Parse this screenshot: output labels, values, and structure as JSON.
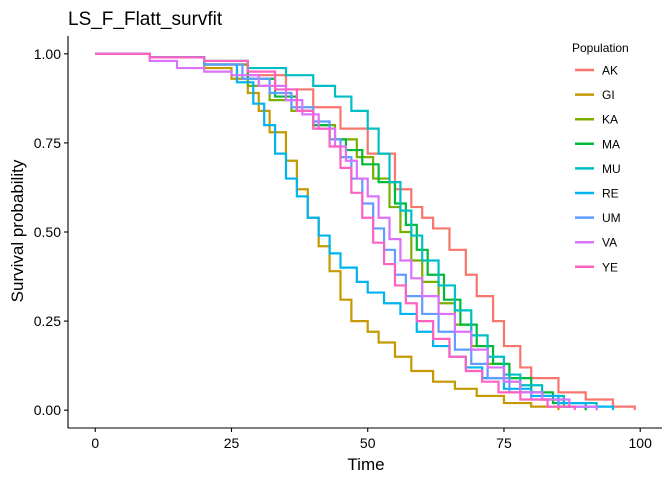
{
  "chart_data": {
    "type": "line",
    "title": "LS_F_Flatt_survfit",
    "xlabel": "Time",
    "ylabel": "Survival probability",
    "xlim": [
      0,
      100
    ],
    "ylim": [
      0,
      1
    ],
    "x_ticks": [
      "0",
      "25",
      "50",
      "75",
      "100"
    ],
    "y_ticks": [
      "0.00",
      "0.25",
      "0.50",
      "0.75",
      "1.00"
    ],
    "grid": false,
    "legend_title": "Population",
    "legend_position": "top-right",
    "step": true,
    "series": [
      {
        "name": "AK",
        "color": "#F8766D",
        "points": [
          [
            0,
            1.0
          ],
          [
            10,
            0.99
          ],
          [
            20,
            0.97
          ],
          [
            28,
            0.94
          ],
          [
            35,
            0.9
          ],
          [
            40,
            0.85
          ],
          [
            45,
            0.79
          ],
          [
            50,
            0.72
          ],
          [
            55,
            0.62
          ],
          [
            58,
            0.57
          ],
          [
            60,
            0.54
          ],
          [
            62,
            0.51
          ],
          [
            65,
            0.45
          ],
          [
            68,
            0.38
          ],
          [
            70,
            0.32
          ],
          [
            73,
            0.25
          ],
          [
            75,
            0.18
          ],
          [
            78,
            0.12
          ],
          [
            80,
            0.09
          ],
          [
            85,
            0.05
          ],
          [
            90,
            0.03
          ],
          [
            95,
            0.01
          ],
          [
            99,
            0.0
          ]
        ]
      },
      {
        "name": "GI",
        "color": "#C49A00",
        "points": [
          [
            0,
            1.0
          ],
          [
            10,
            0.99
          ],
          [
            20,
            0.96
          ],
          [
            25,
            0.93
          ],
          [
            28,
            0.89
          ],
          [
            30,
            0.84
          ],
          [
            32,
            0.78
          ],
          [
            35,
            0.7
          ],
          [
            37,
            0.62
          ],
          [
            39,
            0.54
          ],
          [
            41,
            0.46
          ],
          [
            43,
            0.39
          ],
          [
            45,
            0.31
          ],
          [
            47,
            0.25
          ],
          [
            50,
            0.22
          ],
          [
            52,
            0.19
          ],
          [
            55,
            0.15
          ],
          [
            58,
            0.11
          ],
          [
            62,
            0.08
          ],
          [
            66,
            0.06
          ],
          [
            70,
            0.04
          ],
          [
            75,
            0.02
          ],
          [
            80,
            0.01
          ],
          [
            85,
            0.0
          ]
        ]
      },
      {
        "name": "KA",
        "color": "#7CAE00",
        "points": [
          [
            0,
            1.0
          ],
          [
            10,
            0.99
          ],
          [
            20,
            0.97
          ],
          [
            28,
            0.91
          ],
          [
            32,
            0.87
          ],
          [
            36,
            0.84
          ],
          [
            40,
            0.8
          ],
          [
            44,
            0.76
          ],
          [
            48,
            0.71
          ],
          [
            51,
            0.65
          ],
          [
            54,
            0.57
          ],
          [
            56,
            0.5
          ],
          [
            58,
            0.42
          ],
          [
            60,
            0.36
          ],
          [
            63,
            0.3
          ],
          [
            66,
            0.24
          ],
          [
            69,
            0.18
          ],
          [
            72,
            0.13
          ],
          [
            75,
            0.08
          ],
          [
            78,
            0.05
          ],
          [
            82,
            0.03
          ],
          [
            86,
            0.01
          ],
          [
            90,
            0.0
          ]
        ]
      },
      {
        "name": "MA",
        "color": "#00BA38",
        "points": [
          [
            0,
            1.0
          ],
          [
            10,
            0.99
          ],
          [
            20,
            0.98
          ],
          [
            28,
            0.93
          ],
          [
            33,
            0.88
          ],
          [
            37,
            0.84
          ],
          [
            40,
            0.8
          ],
          [
            43,
            0.76
          ],
          [
            46,
            0.73
          ],
          [
            49,
            0.69
          ],
          [
            52,
            0.64
          ],
          [
            55,
            0.58
          ],
          [
            57,
            0.52
          ],
          [
            59,
            0.45
          ],
          [
            61,
            0.38
          ],
          [
            64,
            0.31
          ],
          [
            67,
            0.24
          ],
          [
            70,
            0.18
          ],
          [
            73,
            0.13
          ],
          [
            76,
            0.09
          ],
          [
            80,
            0.05
          ],
          [
            84,
            0.02
          ],
          [
            90,
            0.0
          ]
        ]
      },
      {
        "name": "MU",
        "color": "#00BFC4",
        "points": [
          [
            0,
            1.0
          ],
          [
            10,
            0.99
          ],
          [
            20,
            0.98
          ],
          [
            28,
            0.96
          ],
          [
            35,
            0.94
          ],
          [
            40,
            0.91
          ],
          [
            44,
            0.88
          ],
          [
            47,
            0.84
          ],
          [
            50,
            0.79
          ],
          [
            52,
            0.72
          ],
          [
            54,
            0.64
          ],
          [
            56,
            0.56
          ],
          [
            58,
            0.49
          ],
          [
            60,
            0.42
          ],
          [
            63,
            0.35
          ],
          [
            66,
            0.28
          ],
          [
            69,
            0.21
          ],
          [
            72,
            0.15
          ],
          [
            75,
            0.1
          ],
          [
            78,
            0.07
          ],
          [
            82,
            0.04
          ],
          [
            86,
            0.02
          ],
          [
            92,
            0.0
          ]
        ]
      },
      {
        "name": "RE",
        "color": "#00B4F0",
        "points": [
          [
            0,
            1.0
          ],
          [
            10,
            0.99
          ],
          [
            20,
            0.97
          ],
          [
            26,
            0.92
          ],
          [
            29,
            0.86
          ],
          [
            31,
            0.8
          ],
          [
            33,
            0.72
          ],
          [
            35,
            0.65
          ],
          [
            37,
            0.6
          ],
          [
            39,
            0.54
          ],
          [
            41,
            0.49
          ],
          [
            43,
            0.44
          ],
          [
            45,
            0.4
          ],
          [
            48,
            0.36
          ],
          [
            50,
            0.33
          ],
          [
            53,
            0.3
          ],
          [
            56,
            0.27
          ],
          [
            59,
            0.22
          ],
          [
            62,
            0.18
          ],
          [
            65,
            0.15
          ],
          [
            68,
            0.12
          ],
          [
            71,
            0.09
          ],
          [
            75,
            0.06
          ],
          [
            80,
            0.04
          ],
          [
            85,
            0.02
          ],
          [
            90,
            0.01
          ],
          [
            95,
            0.0
          ]
        ]
      },
      {
        "name": "UM",
        "color": "#619CFF",
        "points": [
          [
            0,
            1.0
          ],
          [
            10,
            0.99
          ],
          [
            20,
            0.97
          ],
          [
            27,
            0.93
          ],
          [
            32,
            0.89
          ],
          [
            36,
            0.85
          ],
          [
            40,
            0.81
          ],
          [
            43,
            0.76
          ],
          [
            45,
            0.71
          ],
          [
            47,
            0.65
          ],
          [
            49,
            0.58
          ],
          [
            51,
            0.51
          ],
          [
            53,
            0.45
          ],
          [
            55,
            0.38
          ],
          [
            57,
            0.32
          ],
          [
            60,
            0.27
          ],
          [
            63,
            0.22
          ],
          [
            66,
            0.17
          ],
          [
            69,
            0.13
          ],
          [
            72,
            0.09
          ],
          [
            76,
            0.05
          ],
          [
            80,
            0.03
          ],
          [
            85,
            0.01
          ],
          [
            92,
            0.0
          ]
        ]
      },
      {
        "name": "VA",
        "color": "#DB72FB",
        "points": [
          [
            0,
            1.0
          ],
          [
            10,
            0.98
          ],
          [
            15,
            0.96
          ],
          [
            20,
            0.95
          ],
          [
            25,
            0.94
          ],
          [
            30,
            0.91
          ],
          [
            35,
            0.87
          ],
          [
            38,
            0.83
          ],
          [
            41,
            0.79
          ],
          [
            44,
            0.74
          ],
          [
            46,
            0.7
          ],
          [
            48,
            0.65
          ],
          [
            50,
            0.6
          ],
          [
            52,
            0.54
          ],
          [
            54,
            0.48
          ],
          [
            56,
            0.42
          ],
          [
            58,
            0.37
          ],
          [
            60,
            0.32
          ],
          [
            63,
            0.27
          ],
          [
            66,
            0.22
          ],
          [
            69,
            0.17
          ],
          [
            72,
            0.12
          ],
          [
            75,
            0.08
          ],
          [
            78,
            0.05
          ],
          [
            82,
            0.03
          ],
          [
            87,
            0.01
          ],
          [
            92,
            0.0
          ]
        ]
      },
      {
        "name": "YE",
        "color": "#FF61C3",
        "points": [
          [
            0,
            1.0
          ],
          [
            10,
            0.99
          ],
          [
            20,
            0.98
          ],
          [
            28,
            0.95
          ],
          [
            33,
            0.9
          ],
          [
            37,
            0.84
          ],
          [
            40,
            0.79
          ],
          [
            43,
            0.74
          ],
          [
            45,
            0.68
          ],
          [
            47,
            0.61
          ],
          [
            49,
            0.54
          ],
          [
            51,
            0.47
          ],
          [
            53,
            0.41
          ],
          [
            55,
            0.35
          ],
          [
            57,
            0.3
          ],
          [
            59,
            0.25
          ],
          [
            62,
            0.2
          ],
          [
            65,
            0.15
          ],
          [
            68,
            0.11
          ],
          [
            71,
            0.08
          ],
          [
            74,
            0.05
          ],
          [
            78,
            0.03
          ],
          [
            83,
            0.01
          ],
          [
            88,
            0.0
          ]
        ]
      }
    ]
  }
}
